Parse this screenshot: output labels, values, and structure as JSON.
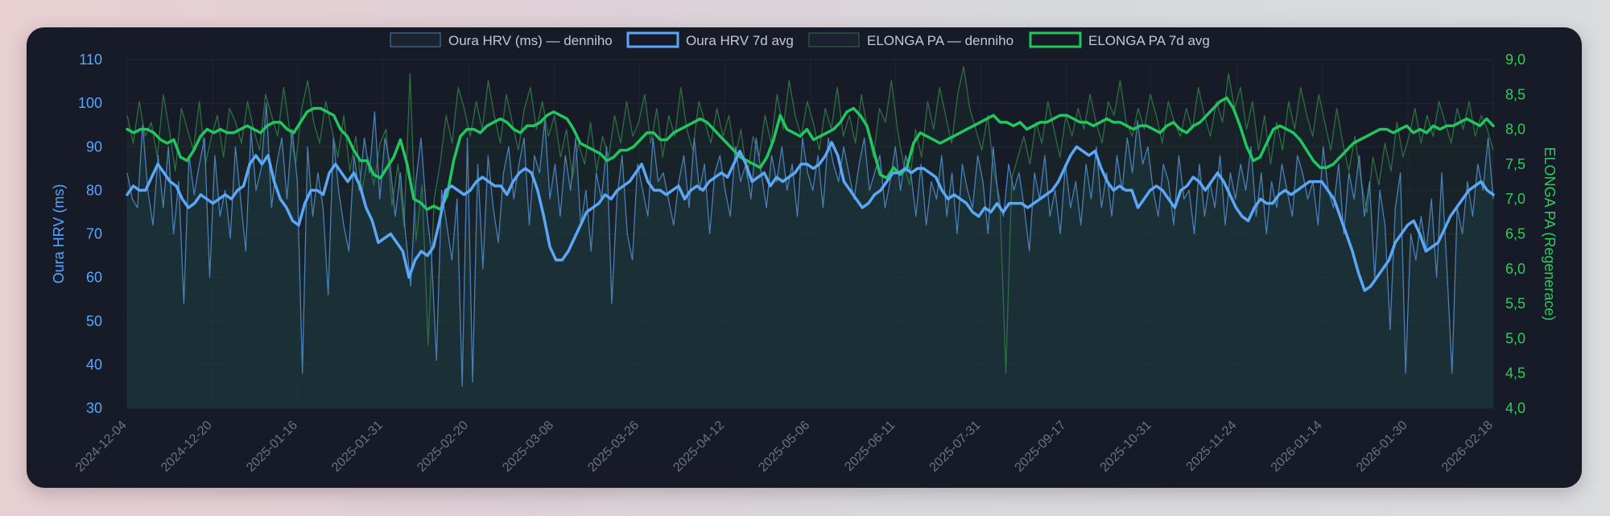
{
  "chart_data": {
    "type": "line",
    "legend_position": "top",
    "grid": true,
    "x_tick_labels": [
      "2024-12-04",
      "2024-12-20",
      "2025-01-16",
      "2025-01-31",
      "2025-02-20",
      "2025-03-08",
      "2025-03-26",
      "2025-04-12",
      "2025-05-06",
      "2025-06-11",
      "2025-07-31",
      "2025-09-17",
      "2025-10-31",
      "2025-11-24",
      "2026-01-14",
      "2026-01-30",
      "2026-02-18"
    ],
    "y_left": {
      "label": "Oura HRV (ms)",
      "min": 30,
      "max": 110,
      "ticks": [
        "30",
        "40",
        "50",
        "60",
        "70",
        "80",
        "90",
        "100",
        "110"
      ]
    },
    "y_right": {
      "label": "ELONGA PA (Regenerace)",
      "min": 4.0,
      "max": 9.0,
      "ticks": [
        "4,0",
        "4,5",
        "5,0",
        "5,5",
        "6,0",
        "6,5",
        "7,0",
        "7,5",
        "8,0",
        "8,5",
        "9,0"
      ]
    },
    "series": [
      {
        "name": "Oura HRV (ms) — denniho",
        "axis": "left",
        "color": "#4a7fb5",
        "style": "thin-fill",
        "values": [
          84,
          78,
          76,
          95,
          80,
          72,
          88,
          76,
          90,
          70,
          82,
          54,
          88,
          79,
          86,
          92,
          60,
          88,
          74,
          80,
          69,
          90,
          78,
          66,
          94,
          80,
          85,
          100,
          76,
          86,
          92,
          78,
          94,
          82,
          38,
          90,
          74,
          84,
          76,
          56,
          92,
          80,
          72,
          66,
          88,
          80,
          92,
          84,
          98,
          78,
          92,
          86,
          74,
          84,
          70,
          58,
          82,
          92,
          76,
          66,
          41,
          80,
          72,
          64,
          78,
          35,
          92,
          36,
          86,
          62,
          88,
          76,
          68,
          84,
          90,
          78,
          86,
          92,
          72,
          88,
          84,
          96,
          78,
          86,
          74,
          88,
          80,
          92,
          72,
          80,
          66,
          84,
          78,
          90,
          54,
          78,
          88,
          70,
          64,
          86,
          80,
          74,
          92,
          82,
          84,
          78,
          72,
          82,
          88,
          76,
          92,
          80,
          86,
          70,
          84,
          88,
          80,
          74,
          90,
          82,
          86,
          78,
          92,
          84,
          76,
          88,
          82,
          90,
          80,
          86,
          74,
          92,
          84,
          80,
          88,
          76,
          92,
          86,
          82,
          90,
          84,
          78,
          86,
          92,
          80,
          84,
          88,
          76,
          82,
          90,
          80,
          88,
          84,
          74,
          86,
          72,
          82,
          78,
          88,
          74,
          84,
          70,
          86,
          80,
          76,
          88,
          82,
          70,
          90,
          78,
          74,
          86,
          80,
          84,
          76,
          66,
          84,
          78,
          88,
          74,
          80,
          70,
          86,
          76,
          82,
          72,
          86,
          78,
          90,
          76,
          84,
          74,
          88,
          80,
          92,
          84,
          96,
          86,
          90,
          80,
          74,
          86,
          82,
          72,
          88,
          78,
          80,
          70,
          86,
          74,
          82,
          76,
          88,
          72,
          84,
          78,
          86,
          80,
          90,
          74,
          84,
          70,
          82,
          76,
          86,
          80,
          74,
          88,
          84,
          78,
          82,
          72,
          90,
          80,
          76,
          86,
          70,
          84,
          78,
          88,
          74,
          82,
          60,
          80,
          72,
          48,
          76,
          84,
          38,
          70,
          64,
          74,
          66,
          78,
          60,
          84,
          62,
          38,
          76,
          70,
          82,
          74,
          86,
          80,
          92,
          78
        ]
      },
      {
        "name": "Oura HRV 7d avg",
        "axis": "left",
        "color": "#5ca7f5",
        "style": "thick",
        "values": [
          79,
          81,
          80,
          80,
          83,
          86,
          84,
          82,
          81,
          78,
          76,
          77,
          79,
          78,
          77,
          78,
          79,
          78,
          80,
          81,
          86,
          88,
          86,
          88,
          82,
          78,
          76,
          73,
          72,
          77,
          80,
          80,
          79,
          84,
          86,
          84,
          82,
          84,
          81,
          76,
          73,
          68,
          69,
          70,
          68,
          66,
          60,
          64,
          66,
          65,
          67,
          73,
          80,
          81,
          80,
          79,
          80,
          82,
          83,
          82,
          81,
          81,
          79,
          82,
          84,
          85,
          84,
          80,
          74,
          67,
          64,
          64,
          66,
          69,
          72,
          75,
          76,
          77,
          79,
          78,
          80,
          81,
          82,
          84,
          86,
          82,
          80,
          80,
          79,
          80,
          81,
          78,
          80,
          81,
          80,
          82,
          83,
          84,
          83,
          86,
          89,
          86,
          82,
          83,
          84,
          81,
          83,
          82,
          83,
          84,
          86,
          86,
          85,
          86,
          88,
          91,
          88,
          82,
          80,
          78,
          76,
          77,
          79,
          80,
          82,
          84,
          84,
          85,
          84,
          85,
          85,
          84,
          83,
          80,
          78,
          79,
          78,
          77,
          75,
          74,
          76,
          75,
          77,
          75,
          77,
          77,
          77,
          76,
          77,
          78,
          79,
          80,
          82,
          85,
          88,
          90,
          89,
          88,
          89,
          85,
          82,
          80,
          81,
          80,
          80,
          76,
          78,
          80,
          81,
          80,
          78,
          76,
          80,
          81,
          83,
          82,
          80,
          82,
          84,
          82,
          79,
          76,
          74,
          73,
          76,
          78,
          77,
          77,
          79,
          80,
          79,
          80,
          81,
          82,
          82,
          82,
          80,
          78,
          74,
          70,
          66,
          61,
          57,
          58,
          60,
          62,
          64,
          68,
          70,
          72,
          73,
          70,
          66,
          67,
          68,
          71,
          74,
          76,
          78,
          80,
          81,
          82,
          80,
          79
        ]
      },
      {
        "name": "ELONGA PA — denniho",
        "axis": "right",
        "color": "#2f6e44",
        "style": "thin",
        "values": [
          8.2,
          7.8,
          8.4,
          7.9,
          8.1,
          7.6,
          8.5,
          8.0,
          7.4,
          8.3,
          8.0,
          7.7,
          8.4,
          7.5,
          7.9,
          8.2,
          7.6,
          8.3,
          8.1,
          7.8,
          8.4,
          8.0,
          7.7,
          8.5,
          8.2,
          7.9,
          8.6,
          8.0,
          7.5,
          8.3,
          8.7,
          8.1,
          7.8,
          8.4,
          8.0,
          7.6,
          8.2,
          7.4,
          7.9,
          7.1,
          7.6,
          7.2,
          7.8,
          8.0,
          6.9,
          7.5,
          6.6,
          8.8,
          6.4,
          7.2,
          4.9,
          7.0,
          7.5,
          8.2,
          7.8,
          8.6,
          8.3,
          7.9,
          8.4,
          8.0,
          8.7,
          8.2,
          7.8,
          8.5,
          8.1,
          7.7,
          8.3,
          8.6,
          8.0,
          8.4,
          7.9,
          8.2,
          7.6,
          8.0,
          7.3,
          7.8,
          7.5,
          8.1,
          7.4,
          7.9,
          7.6,
          8.2,
          7.8,
          8.4,
          7.9,
          8.1,
          8.5,
          7.8,
          8.3,
          7.6,
          8.2,
          7.9,
          8.6,
          8.0,
          7.7,
          8.4,
          8.1,
          7.8,
          8.3,
          7.9,
          8.2,
          7.6,
          8.0,
          7.3,
          7.9,
          7.6,
          8.2,
          7.8,
          8.5,
          8.0,
          8.7,
          8.2,
          7.9,
          8.4,
          8.1,
          7.7,
          8.3,
          8.0,
          8.6,
          7.9,
          8.2,
          7.8,
          8.5,
          8.0,
          7.6,
          8.3,
          8.1,
          8.7,
          8.0,
          7.5,
          7.2,
          8.0,
          7.6,
          8.4,
          8.0,
          8.6,
          8.2,
          7.8,
          8.5,
          8.9,
          8.3,
          8.0,
          7.7,
          8.2,
          7.4,
          7.0,
          4.5,
          7.3,
          7.6,
          7.9,
          7.5,
          8.1,
          7.8,
          8.4,
          8.0,
          7.6,
          8.2,
          7.9,
          8.3,
          8.0,
          8.5,
          8.1,
          7.8,
          8.4,
          8.2,
          8.7,
          8.1,
          7.9,
          8.3,
          8.0,
          8.5,
          8.2,
          7.8,
          8.4,
          8.1,
          7.9,
          8.3,
          8.0,
          8.6,
          8.2,
          7.9,
          8.4,
          8.1,
          8.8,
          8.3,
          8.6,
          8.0,
          8.4,
          7.7,
          8.2,
          7.5,
          8.1,
          7.7,
          8.4,
          8.0,
          8.6,
          8.2,
          7.9,
          8.5,
          8.1,
          7.7,
          8.3,
          7.8,
          7.4,
          7.9,
          7.3,
          6.8,
          7.6,
          7.2,
          7.8,
          7.4,
          8.1,
          7.6,
          7.9,
          8.3,
          7.8,
          8.2,
          7.9,
          8.4,
          8.1,
          7.8,
          8.3,
          8.0,
          8.4,
          7.9,
          8.2,
          8.0,
          7.7
        ]
      },
      {
        "name": "ELONGA PA 7d avg",
        "axis": "right",
        "color": "#22c55e",
        "style": "thick",
        "values": [
          8.0,
          7.95,
          8.0,
          8.0,
          7.95,
          7.85,
          7.8,
          7.85,
          7.6,
          7.55,
          7.7,
          7.9,
          8.0,
          7.95,
          8.0,
          7.95,
          7.95,
          8.0,
          8.05,
          8.0,
          7.95,
          8.05,
          8.1,
          8.1,
          8.0,
          7.95,
          8.1,
          8.25,
          8.3,
          8.3,
          8.25,
          8.2,
          8.0,
          7.9,
          7.7,
          7.55,
          7.55,
          7.35,
          7.3,
          7.45,
          7.6,
          7.85,
          7.5,
          7.0,
          6.95,
          6.85,
          6.9,
          6.85,
          7.05,
          7.55,
          7.9,
          8.0,
          8.0,
          7.95,
          8.05,
          8.1,
          8.15,
          8.1,
          8.0,
          7.95,
          8.05,
          8.05,
          8.1,
          8.2,
          8.25,
          8.2,
          8.15,
          8.0,
          7.8,
          7.75,
          7.7,
          7.65,
          7.55,
          7.6,
          7.7,
          7.7,
          7.75,
          7.85,
          7.95,
          7.95,
          7.85,
          7.85,
          7.95,
          8.0,
          8.05,
          8.1,
          8.15,
          8.1,
          8.0,
          7.9,
          7.8,
          7.7,
          7.6,
          7.55,
          7.5,
          7.45,
          7.6,
          7.85,
          8.2,
          8.0,
          7.95,
          7.9,
          8.0,
          7.85,
          7.9,
          7.95,
          8.0,
          8.1,
          8.25,
          8.3,
          8.2,
          8.05,
          7.7,
          7.35,
          7.3,
          7.45,
          7.35,
          7.45,
          7.8,
          7.95,
          7.9,
          7.85,
          7.8,
          7.85,
          7.9,
          7.95,
          8.0,
          8.05,
          8.1,
          8.15,
          8.2,
          8.1,
          8.1,
          8.05,
          8.1,
          8.0,
          8.05,
          8.1,
          8.1,
          8.15,
          8.2,
          8.2,
          8.15,
          8.1,
          8.1,
          8.05,
          8.1,
          8.15,
          8.1,
          8.1,
          8.05,
          8.0,
          8.05,
          8.05,
          8.0,
          7.95,
          8.05,
          8.1,
          8.0,
          7.95,
          8.05,
          8.1,
          8.2,
          8.3,
          8.4,
          8.45,
          8.3,
          8.05,
          7.75,
          7.55,
          7.6,
          7.8,
          8.0,
          8.05,
          8.0,
          7.95,
          7.85,
          7.7,
          7.55,
          7.45,
          7.45,
          7.5,
          7.6,
          7.7,
          7.8,
          7.85,
          7.9,
          7.95,
          8.0,
          8.0,
          7.95,
          8.0,
          8.05,
          7.95,
          8.0,
          7.95,
          8.05,
          8.0,
          8.05,
          8.05,
          8.1,
          8.15,
          8.1,
          8.05,
          8.15,
          8.05
        ]
      }
    ]
  }
}
